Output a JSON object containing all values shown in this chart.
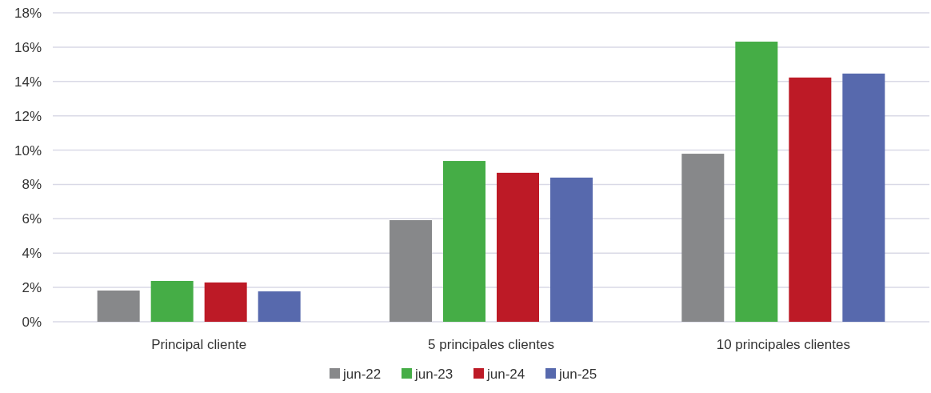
{
  "chart_data": {
    "type": "bar",
    "categories": [
      "Principal cliente",
      "5 principales clientes",
      "10 principales clientes"
    ],
    "series": [
      {
        "name": "jun-22",
        "color": "#87888a",
        "values": [
          1.82,
          5.92,
          9.79
        ]
      },
      {
        "name": "jun-23",
        "color": "#45ad46",
        "values": [
          2.38,
          9.37,
          16.32
        ]
      },
      {
        "name": "jun-24",
        "color": "#bd1a26",
        "values": [
          2.29,
          8.68,
          14.23
        ]
      },
      {
        "name": "jun-25",
        "color": "#5769ad",
        "values": [
          1.77,
          8.4,
          14.46
        ]
      }
    ],
    "ylim": [
      0,
      18
    ],
    "yticks": [
      {
        "value": 0,
        "label": "0%"
      },
      {
        "value": 2,
        "label": "2%"
      },
      {
        "value": 4,
        "label": "4%"
      },
      {
        "value": 6,
        "label": "6%"
      },
      {
        "value": 8,
        "label": "8%"
      },
      {
        "value": 10,
        "label": "10%"
      },
      {
        "value": 12,
        "label": "12%"
      },
      {
        "value": 14,
        "label": "14%"
      },
      {
        "value": 16,
        "label": "16%"
      },
      {
        "value": 18,
        "label": "18%"
      }
    ],
    "grid": "y",
    "legend": "bottom"
  }
}
